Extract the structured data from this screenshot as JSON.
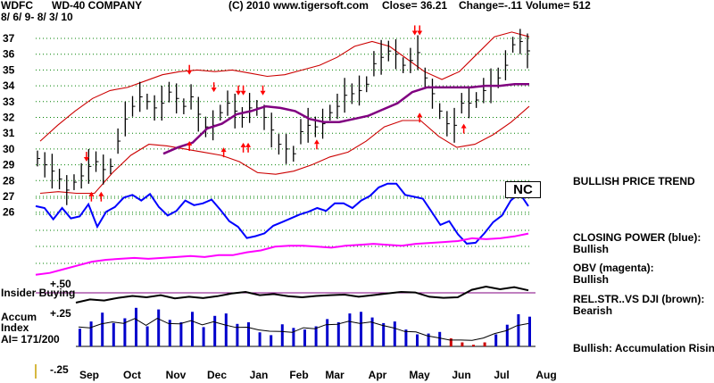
{
  "header": {
    "ticker": "WDFC",
    "company": "WD-40 COMPANY",
    "copyright": "(C) 2010 www.tigersoft.com",
    "close": "Close=  36.21",
    "change": "Change=-.11",
    "volume": "Volume= 512",
    "date_range": "8/ 6/ 9- 8/ 3/ 10"
  },
  "badge": "NC",
  "legend": {
    "trend": "BULLISH PRICE TREND",
    "closing_power_title": "CLOSING POWER (blue):",
    "closing_power_value": "Bullish",
    "obv_title": "OBV (magenta):",
    "obv_value": "Bullish",
    "relstr_title": "REL.STR..VS DJI (brown):",
    "relstr_value": "Bearish",
    "accum_note": "Bullish: Accumulation Rising"
  },
  "indicator_labels": {
    "plus50": "+.50",
    "insider_buying": "Insider Buying",
    "accum": "Accum",
    "index": "Index",
    "ai": "AI= 171/200",
    "plus25": "+.25",
    "minus25": "-.25"
  },
  "colors": {
    "price_bars": "#000000",
    "bands": "#cc0000",
    "moving_average": "#800080",
    "closing_power": "#0000ff",
    "obv": "#ff00ff",
    "relstr": "#000000",
    "grid": "#008000",
    "arrows": "#ff0000",
    "accum_bars": "#0000cc"
  },
  "chart_data": {
    "type": "line",
    "title": "WD-40 COMPANY",
    "xlabel": "",
    "ylabel": "",
    "ylim": [
      25.5,
      37.5
    ],
    "yticks": [
      "37",
      "36",
      "35",
      "34",
      "33",
      "32",
      "31",
      "30",
      "29",
      "28",
      "27",
      "26"
    ],
    "xticks": [
      "Sep",
      "Oct",
      "Nov",
      "Dec",
      "Jan",
      "Feb",
      "Mar",
      "Apr",
      "May",
      "Jun",
      "Jul",
      "Aug"
    ],
    "grid": true,
    "series": [
      {
        "values": [
          29.4,
          29.0,
          28.6,
          28.1,
          27.4,
          27.9,
          28.3,
          28.9,
          29.2,
          28.7,
          28.9,
          30.5,
          31.9,
          32.7,
          33.3,
          33.0,
          32.6,
          32.9,
          33.6,
          33.2,
          32.7,
          33.3,
          32.2,
          31.4,
          31.5,
          32.3,
          32.9,
          32.4,
          32.0,
          32.6,
          32.6,
          32.0,
          31.2,
          30.3,
          30.0,
          29.7,
          31.1,
          31.5,
          31.4,
          31.6,
          32.3,
          32.7,
          33.4,
          33.5,
          33.7,
          34.1,
          35.4,
          35.8,
          36.2,
          36.0,
          35.3,
          35.6,
          36.1,
          34.5,
          33.5,
          32.4,
          31.6,
          31.5,
          32.9,
          32.9,
          33.1,
          33.7,
          34.0,
          34.5,
          35.3,
          36.6,
          36.8,
          36.21
        ]
      },
      {
        "values": [
          30.5,
          31.5,
          32.4,
          33.2,
          33.7,
          33.9,
          34.3,
          34.7,
          34.9,
          35.0,
          34.9,
          35.0,
          34.8,
          34.6,
          34.7,
          35.0,
          35.3,
          35.8,
          36.5,
          36.8,
          36.5,
          35.7,
          34.9,
          34.4,
          34.9,
          36.0,
          37.1,
          37.4,
          37.1
        ]
      },
      {
        "values": [
          27.2,
          27.3,
          27.2,
          27.2,
          28.5,
          29.6,
          30.3,
          30.2,
          30.0,
          29.8,
          29.6,
          29.2,
          28.5,
          28.4,
          28.6,
          29.0,
          29.5,
          29.8,
          30.5,
          31.4,
          31.8,
          31.8,
          30.8,
          30.1,
          30.3,
          30.9,
          31.7,
          32.7
        ]
      },
      {
        "values": [
          29.7,
          30.1,
          30.4,
          31.3,
          31.6,
          32.2,
          32.4,
          32.7,
          32.6,
          32.4,
          31.9,
          31.7,
          31.7,
          31.9,
          32.1,
          32.5,
          32.9,
          33.6,
          33.9,
          33.9,
          33.9,
          33.9,
          34.0,
          34.0,
          34.1,
          34.1
        ]
      },
      {
        "values": [
          0.62,
          0.6,
          0.48,
          0.6,
          0.49,
          0.51,
          0.64,
          0.4,
          0.56,
          0.61,
          0.71,
          0.74,
          0.68,
          0.75,
          0.61,
          0.52,
          0.57,
          0.68,
          0.63,
          0.65,
          0.69,
          0.58,
          0.46,
          0.4,
          0.28,
          0.3,
          0.33,
          0.41,
          0.45,
          0.49,
          0.53,
          0.56,
          0.6,
          0.57,
          0.65,
          0.65,
          0.6,
          0.68,
          0.73,
          0.82,
          0.86,
          0.86,
          0.74,
          0.72,
          0.7,
          0.56,
          0.42,
          0.46,
          0.32,
          0.22,
          0.23,
          0.33,
          0.45,
          0.52,
          0.68,
          0.76,
          0.62
        ]
      },
      {
        "values": [
          0.04,
          0.06,
          0.1,
          0.14,
          0.18,
          0.2,
          0.21,
          0.22,
          0.21,
          0.22,
          0.23,
          0.24,
          0.23,
          0.25,
          0.25,
          0.28,
          0.3,
          0.34,
          0.35,
          0.35,
          0.34,
          0.33,
          0.35,
          0.36,
          0.37,
          0.36,
          0.35,
          0.37,
          0.38,
          0.39,
          0.4,
          0.43,
          0.42,
          0.43,
          0.45,
          0.48
        ]
      },
      {
        "values": [
          0.3,
          0.42,
          0.38,
          0.48,
          0.55,
          0.5,
          0.58,
          0.46,
          0.52,
          0.47,
          0.54,
          0.64,
          0.7,
          0.58,
          0.62,
          0.54,
          0.5,
          0.55,
          0.58,
          0.6,
          0.52,
          0.58,
          0.64,
          0.7,
          0.68,
          0.52,
          0.48,
          0.5,
          0.78,
          0.9,
          0.8,
          0.88,
          0.76
        ]
      },
      {
        "values": [
          0.44,
          0.62,
          0.84,
          0.58,
          0.7,
          0.96,
          0.5,
          0.92,
          0.66,
          0.6,
          0.86,
          0.48,
          0.76,
          0.82,
          0.56,
          0.6,
          0.35,
          0.28,
          0.55,
          0.46,
          0.42,
          0.5,
          0.68,
          0.6,
          0.82,
          0.86,
          0.72,
          0.58,
          0.62,
          0.42,
          0.3,
          0.32,
          0.36,
          0.2,
          0.1,
          0.04,
          0.1,
          0.3,
          0.54,
          0.8,
          0.74
        ]
      }
    ]
  }
}
